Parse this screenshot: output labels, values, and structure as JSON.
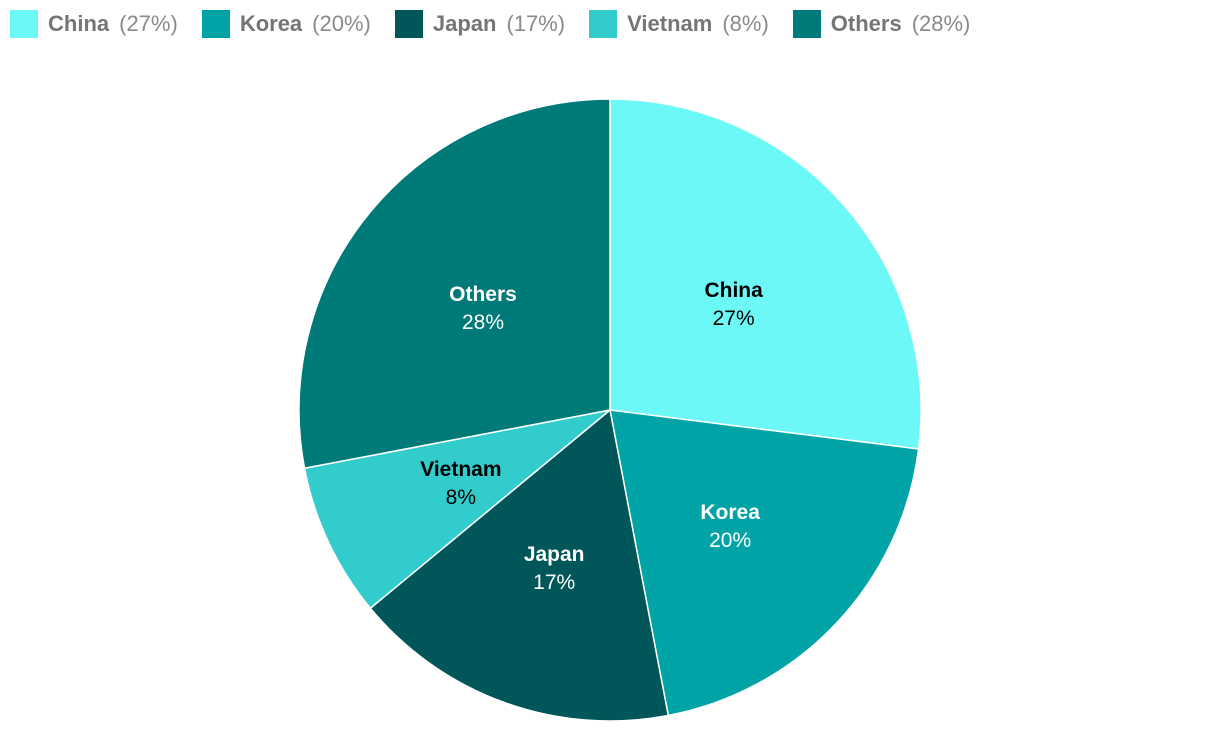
{
  "chart_data": {
    "type": "pie",
    "legend_position": "top-left",
    "series": [
      {
        "name": "China",
        "value": 27,
        "label": "27%",
        "legend_label": "(27%)",
        "color": "#6cf8f6",
        "text_color": "#000000"
      },
      {
        "name": "Korea",
        "value": 20,
        "label": "20%",
        "legend_label": "(20%)",
        "color": "#00a3a6",
        "text_color": "#ffffff"
      },
      {
        "name": "Japan",
        "value": 17,
        "label": "17%",
        "legend_label": "(17%)",
        "color": "#005659",
        "text_color": "#ffffff"
      },
      {
        "name": "Vietnam",
        "value": 8,
        "label": "8%",
        "legend_label": "(8%)",
        "color": "#33cccc",
        "text_color": "#000000"
      },
      {
        "name": "Others",
        "value": 28,
        "label": "28%",
        "legend_label": "(28%)",
        "color": "#007a79",
        "text_color": "#ffffff"
      }
    ]
  }
}
